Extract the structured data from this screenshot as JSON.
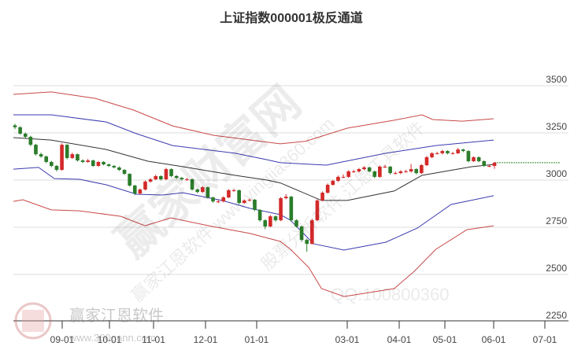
{
  "chart_data": {
    "type": "candlestick",
    "title": "上证指数000001极反通道",
    "y_ticks": [
      3500,
      3250,
      3000,
      2750,
      2500,
      2250
    ],
    "ylim": [
      2250,
      3550
    ],
    "x_ticks": [
      "09-01",
      "10-01",
      "11-01",
      "12-01",
      "01-01",
      "03-01",
      "04-01",
      "05-01",
      "06-01",
      "07-01"
    ],
    "grid": "horizontal",
    "last_close_line": 3092,
    "colors": {
      "up": "#d42a2a",
      "down": "#2b7d2b",
      "outer_band": "#c84848",
      "inner_band": "#3b3bb0",
      "middle": "#333333",
      "last_line": "#2b8a2b"
    },
    "bands": {
      "upper_outer": [
        [
          "08-01",
          3454
        ],
        [
          "08-25",
          3467
        ],
        [
          "09-22",
          3433
        ],
        [
          "10-18",
          3371
        ],
        [
          "11-12",
          3287
        ],
        [
          "12-06",
          3237
        ],
        [
          "01-17",
          3192
        ],
        [
          "02-03",
          3206
        ],
        [
          "03-01",
          3275
        ],
        [
          "03-29",
          3317
        ],
        [
          "04-16",
          3346
        ],
        [
          "04-23",
          3321
        ],
        [
          "05-12",
          3312
        ],
        [
          "06-01",
          3325
        ]
      ],
      "upper_inner": [
        [
          "08-01",
          3346
        ],
        [
          "08-25",
          3346
        ],
        [
          "09-29",
          3308
        ],
        [
          "10-20",
          3246
        ],
        [
          "11-12",
          3183
        ],
        [
          "12-19",
          3142
        ],
        [
          "01-08",
          3108
        ],
        [
          "01-17",
          3092
        ],
        [
          "02-16",
          3079
        ],
        [
          "03-24",
          3142
        ],
        [
          "04-25",
          3183
        ],
        [
          "06-01",
          3212
        ]
      ],
      "middle": [
        [
          "08-01",
          3225
        ],
        [
          "08-25",
          3212
        ],
        [
          "09-29",
          3162
        ],
        [
          "10-28",
          3100
        ],
        [
          "11-18",
          3071
        ],
        [
          "12-19",
          3025
        ],
        [
          "01-08",
          3000
        ],
        [
          "01-17",
          2985
        ],
        [
          "02-13",
          2892
        ],
        [
          "03-01",
          2892
        ],
        [
          "03-29",
          2942
        ],
        [
          "04-16",
          3025
        ],
        [
          "05-18",
          3071
        ],
        [
          "06-01",
          3083
        ]
      ],
      "lower_inner": [
        [
          "08-01",
          3058
        ],
        [
          "08-17",
          3067
        ],
        [
          "08-27",
          3008
        ],
        [
          "09-12",
          3004
        ],
        [
          "09-29",
          2975
        ],
        [
          "10-20",
          2925
        ],
        [
          "11-06",
          2921
        ],
        [
          "11-18",
          2933
        ],
        [
          "12-11",
          2892
        ],
        [
          "12-28",
          2850
        ],
        [
          "01-17",
          2817
        ],
        [
          "01-24",
          2787
        ],
        [
          "02-08",
          2662
        ],
        [
          "02-27",
          2629
        ],
        [
          "03-24",
          2671
        ],
        [
          "04-13",
          2746
        ],
        [
          "05-05",
          2871
        ],
        [
          "06-01",
          2917
        ]
      ],
      "lower_outer": [
        [
          "08-01",
          2887
        ],
        [
          "08-07",
          2896
        ],
        [
          "08-25",
          2842
        ],
        [
          "09-12",
          2837
        ],
        [
          "10-09",
          2808
        ],
        [
          "10-26",
          2758
        ],
        [
          "11-11",
          2800
        ],
        [
          "12-03",
          2758
        ],
        [
          "12-28",
          2717
        ],
        [
          "01-17",
          2675
        ],
        [
          "01-24",
          2633
        ],
        [
          "02-05",
          2537
        ],
        [
          "02-13",
          2425
        ],
        [
          "02-27",
          2383
        ],
        [
          "03-29",
          2425
        ],
        [
          "04-11",
          2517
        ],
        [
          "04-25",
          2633
        ],
        [
          "05-15",
          2737
        ],
        [
          "06-01",
          2758
        ]
      ]
    },
    "candles_ohlc": [
      [
        3290,
        3298,
        3270,
        3280
      ],
      [
        3280,
        3285,
        3240,
        3246
      ],
      [
        3246,
        3252,
        3222,
        3229
      ],
      [
        3229,
        3235,
        3180,
        3187
      ],
      [
        3187,
        3192,
        3130,
        3137
      ],
      [
        3137,
        3145,
        3118,
        3125
      ],
      [
        3125,
        3130,
        3090,
        3096
      ],
      [
        3096,
        3102,
        3068,
        3075
      ],
      [
        3075,
        3080,
        3046,
        3054
      ],
      [
        3054,
        3195,
        3050,
        3187
      ],
      [
        3187,
        3190,
        3110,
        3117
      ],
      [
        3117,
        3145,
        3112,
        3137
      ],
      [
        3137,
        3140,
        3098,
        3104
      ],
      [
        3104,
        3110,
        3090,
        3096
      ],
      [
        3096,
        3112,
        3092,
        3104
      ],
      [
        3104,
        3108,
        3070,
        3075
      ],
      [
        3075,
        3100,
        3070,
        3096
      ],
      [
        3096,
        3100,
        3078,
        3083
      ],
      [
        3083,
        3088,
        3070,
        3075
      ],
      [
        3075,
        3080,
        3062,
        3067
      ],
      [
        3067,
        3072,
        3048,
        3054
      ],
      [
        3054,
        3058,
        3028,
        3033
      ],
      [
        3033,
        3036,
        2965,
        2971
      ],
      [
        2971,
        2975,
        2920,
        2929
      ],
      [
        2929,
        2955,
        2922,
        2950
      ],
      [
        2950,
        2998,
        2945,
        2992
      ],
      [
        2992,
        3010,
        2986,
        3004
      ],
      [
        3004,
        3028,
        3000,
        3021
      ],
      [
        3021,
        3025,
        2998,
        3004
      ],
      [
        3004,
        3065,
        3000,
        3058
      ],
      [
        3058,
        3062,
        3015,
        3021
      ],
      [
        3021,
        3026,
        3006,
        3012
      ],
      [
        3012,
        3016,
        2998,
        3004
      ],
      [
        3004,
        3012,
        2996,
        3004
      ],
      [
        3004,
        3008,
        2944,
        2950
      ],
      [
        2950,
        2955,
        2930,
        2937
      ],
      [
        2937,
        2968,
        2932,
        2962
      ],
      [
        2962,
        2966,
        2902,
        2908
      ],
      [
        2908,
        2912,
        2880,
        2887
      ],
      [
        2887,
        2895,
        2878,
        2887
      ],
      [
        2887,
        2914,
        2882,
        2908
      ],
      [
        2908,
        2952,
        2904,
        2946
      ],
      [
        2946,
        2955,
        2938,
        2946
      ],
      [
        2946,
        2950,
        2872,
        2879
      ],
      [
        2879,
        2898,
        2874,
        2892
      ],
      [
        2892,
        2902,
        2886,
        2896
      ],
      [
        2896,
        2900,
        2836,
        2842
      ],
      [
        2842,
        2846,
        2780,
        2787
      ],
      [
        2787,
        2792,
        2740,
        2754
      ],
      [
        2754,
        2815,
        2750,
        2808
      ],
      [
        2808,
        2812,
        2780,
        2787
      ],
      [
        2787,
        2910,
        2782,
        2904
      ],
      [
        2904,
        2925,
        2898,
        2912
      ],
      [
        2912,
        2916,
        2780,
        2787
      ],
      [
        2787,
        2792,
        2748,
        2754
      ],
      [
        2754,
        2758,
        2676,
        2683
      ],
      [
        2683,
        2690,
        2620,
        2662
      ],
      [
        2662,
        2795,
        2658,
        2787
      ],
      [
        2787,
        2898,
        2782,
        2892
      ],
      [
        2892,
        2940,
        2888,
        2933
      ],
      [
        2933,
        2982,
        2928,
        2975
      ],
      [
        2975,
        3002,
        2970,
        2996
      ],
      [
        2996,
        3024,
        2990,
        3017
      ],
      [
        3017,
        3030,
        3010,
        3017
      ],
      [
        3017,
        3052,
        3012,
        3046
      ],
      [
        3046,
        3055,
        3038,
        3046
      ],
      [
        3046,
        3064,
        3040,
        3058
      ],
      [
        3058,
        3074,
        3052,
        3067
      ],
      [
        3067,
        3072,
        3040,
        3046
      ],
      [
        3046,
        3050,
        3010,
        3017
      ],
      [
        3017,
        3078,
        3012,
        3071
      ],
      [
        3071,
        3080,
        3064,
        3071
      ],
      [
        3071,
        3075,
        3030,
        3037
      ],
      [
        3037,
        3045,
        3030,
        3037
      ],
      [
        3037,
        3052,
        3032,
        3046
      ],
      [
        3046,
        3055,
        3040,
        3046
      ],
      [
        3046,
        3085,
        3040,
        3058
      ],
      [
        3058,
        3062,
        3030,
        3037
      ],
      [
        3037,
        3085,
        3032,
        3079
      ],
      [
        3079,
        3128,
        3074,
        3121
      ],
      [
        3121,
        3148,
        3116,
        3142
      ],
      [
        3142,
        3150,
        3136,
        3142
      ],
      [
        3142,
        3160,
        3136,
        3154
      ],
      [
        3154,
        3158,
        3136,
        3142
      ],
      [
        3142,
        3150,
        3136,
        3142
      ],
      [
        3142,
        3170,
        3138,
        3162
      ],
      [
        3162,
        3166,
        3148,
        3154
      ],
      [
        3154,
        3158,
        3094,
        3100
      ],
      [
        3100,
        3126,
        3096,
        3121
      ],
      [
        3121,
        3125,
        3094,
        3100
      ],
      [
        3100,
        3104,
        3070,
        3075
      ],
      [
        3075,
        3082,
        3068,
        3075
      ],
      [
        3075,
        3096,
        3060,
        3092
      ]
    ]
  },
  "watermarks": {
    "big": "赢家财富网",
    "soft1": "赢家江恩软件 www.yingjia360.com",
    "soft2": "股票分析软件 江恩工具软件",
    "qq": "QQ:100800360",
    "logo_name": "赢家江恩软件",
    "logo_url": "www.360gann.com"
  }
}
